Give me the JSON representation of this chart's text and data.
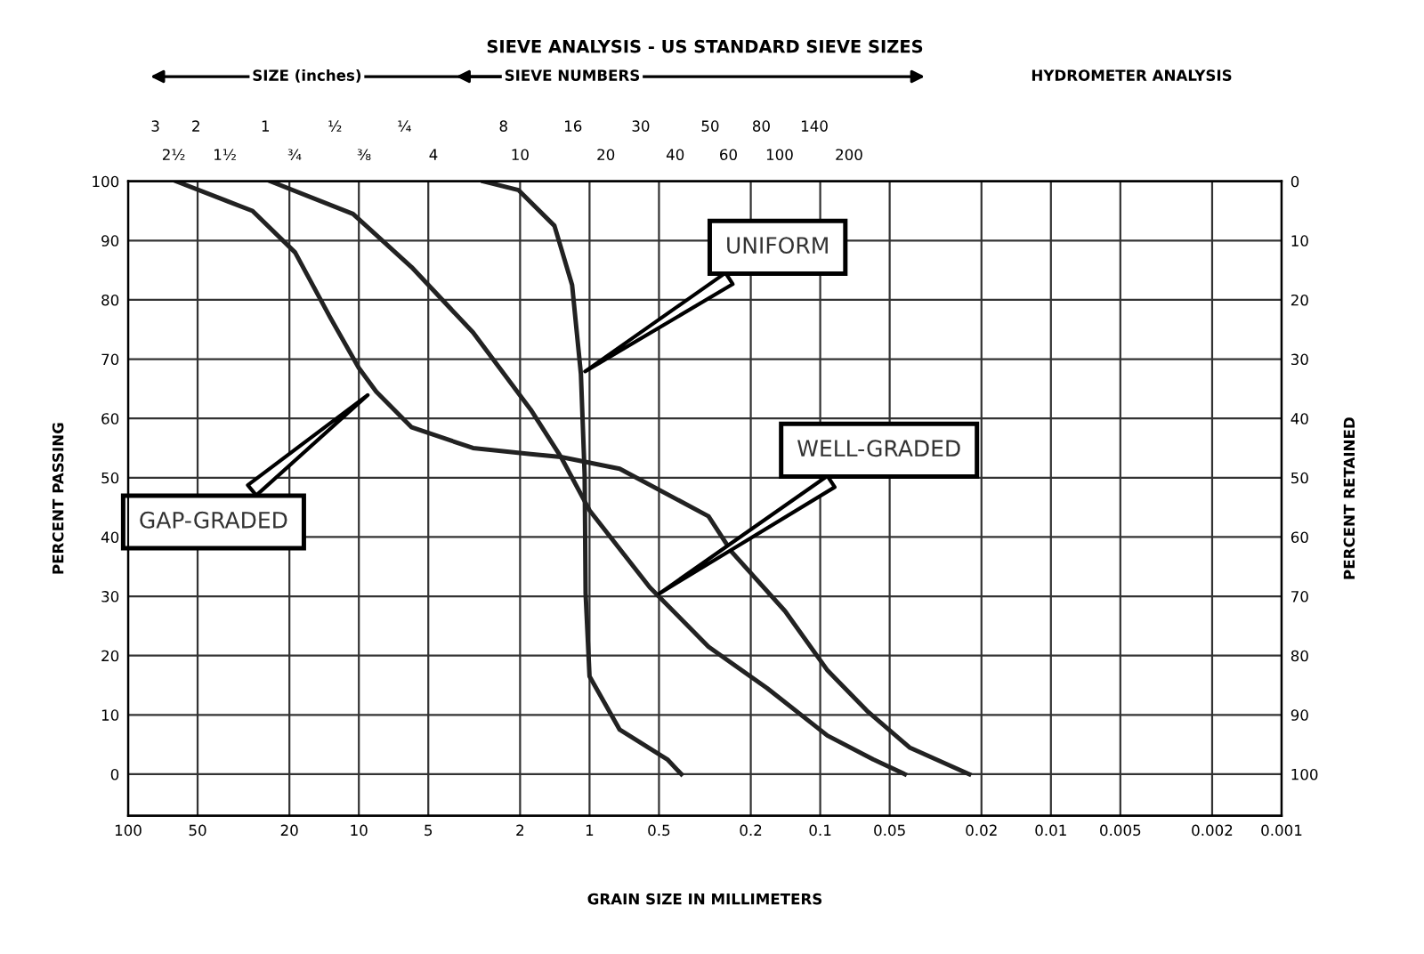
{
  "chart_data": {
    "type": "line",
    "title": "SIEVE ANALYSIS - US STANDARD SIEVE SIZES",
    "xlabel": "GRAIN SIZE IN MILLIMETERS",
    "ylabel": "PERCENT PASSING",
    "y2label": "PERCENT RETAINED",
    "log": "x",
    "grid": true,
    "marker": "none",
    "line_style": "solid",
    "xlim": [
      100,
      0.001
    ],
    "xticks": [
      100,
      50,
      20,
      10,
      5,
      2,
      1,
      0.5,
      0.2,
      0.1,
      0.05,
      0.02,
      0.01,
      0.005,
      0.002,
      0.001
    ],
    "ylim": [
      -7,
      100
    ],
    "yticks": [
      0,
      10,
      20,
      30,
      40,
      50,
      60,
      70,
      80,
      90,
      100
    ],
    "y2lim": [
      107,
      0
    ],
    "y2ticks": [
      0,
      10,
      20,
      30,
      40,
      50,
      60,
      70,
      80,
      90,
      100
    ],
    "series": [
      {
        "color": "#222222",
        "x": [
          62,
          28.9,
          18.9,
          13.3,
          10.0,
          8.4,
          5.9,
          3.2,
          1.8,
          1.33,
          0.74,
          0.305,
          0.242,
          0.142,
          0.093,
          0.062,
          0.041,
          0.0226
        ],
        "values": [
          100,
          95,
          88,
          77,
          68.5,
          64.5,
          58.5,
          55,
          54,
          53.5,
          51.5,
          43.5,
          37.5,
          27.5,
          17.5,
          10.5,
          4.5,
          0
        ]
      },
      {
        "color": "#222222",
        "x": [
          2.89,
          2.03,
          1.42,
          1.19,
          1.09,
          1.05,
          1.04,
          1.0,
          0.74,
          0.46,
          0.4
        ],
        "values": [
          100,
          98.5,
          92.5,
          82.5,
          67.5,
          50.5,
          30.5,
          16.5,
          7.5,
          2.5,
          0
        ]
      },
      {
        "color": "#222222",
        "x": [
          24.2,
          10.6,
          5.9,
          3.2,
          1.8,
          1.33,
          1.0,
          0.548,
          0.305,
          0.17,
          0.093,
          0.059,
          0.043
        ],
        "values": [
          100,
          94.5,
          85.5,
          74.5,
          61.5,
          53.5,
          44.5,
          31.5,
          21.5,
          14.5,
          6.5,
          2.5,
          0
        ]
      }
    ],
    "annotations": [
      "UNIFORM",
      "WELL-GRADED",
      "GAP-GRADED",
      "SIZE (inches)",
      "SIEVE NUMBERS",
      "HYDROMETER ANALYSIS",
      "3",
      "2",
      "1",
      "½",
      "¼",
      "8",
      "16",
      "30",
      "50",
      "80",
      "140",
      "2½",
      "1½",
      "¾",
      "⅜",
      "4",
      "10",
      "20",
      "40",
      "60",
      "100",
      "200"
    ]
  }
}
